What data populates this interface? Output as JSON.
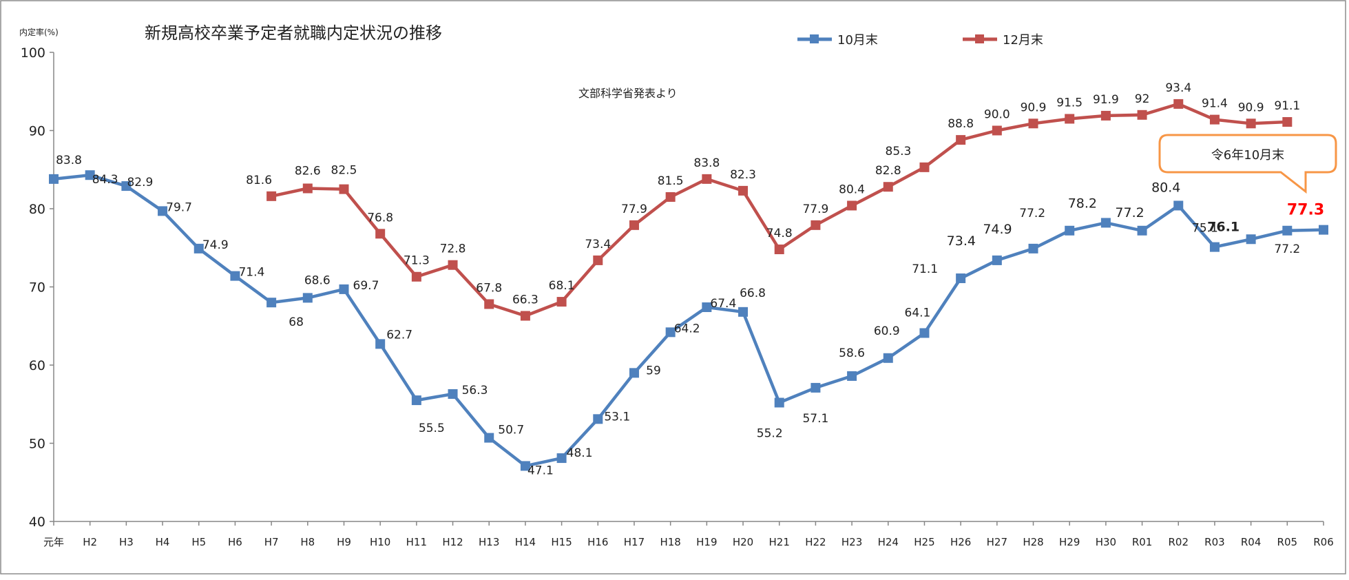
{
  "chart_data": {
    "type": "line",
    "title": "新規高校卒業予定者就職内定状況の推移",
    "ylabel": "内定率(%)",
    "xlabel": "",
    "source_note": "文部科学省発表より",
    "callout": "令6年10月末",
    "ylim": [
      40,
      100
    ],
    "yticks": [
      40,
      50,
      60,
      70,
      80,
      90,
      100
    ],
    "grid": false,
    "legend_position": "top-center",
    "categories": [
      "元年",
      "H2",
      "H3",
      "H4",
      "H5",
      "H6",
      "H7",
      "H8",
      "H9",
      "H10",
      "H11",
      "H12",
      "H13",
      "H14",
      "H15",
      "H16",
      "H17",
      "H18",
      "H19",
      "H20",
      "H21",
      "H22",
      "H23",
      "H24",
      "H25",
      "H26",
      "H27",
      "H28",
      "H29",
      "H30",
      "R01",
      "R02",
      "R03",
      "R04",
      "R05",
      "R06"
    ],
    "series": [
      {
        "name": "10月末",
        "color": "#4f81bd",
        "values": [
          83.8,
          84.3,
          82.9,
          79.7,
          74.9,
          71.4,
          68,
          68.6,
          69.7,
          62.7,
          55.5,
          56.3,
          50.7,
          47.1,
          48.1,
          53.1,
          59,
          64.2,
          67.4,
          66.8,
          55.2,
          57.1,
          58.6,
          60.9,
          64.1,
          71.1,
          73.4,
          74.9,
          77.2,
          78.2,
          77.2,
          80.4,
          75.1,
          76.1,
          77.2,
          77.3
        ],
        "labels": [
          "83.8",
          "84.3",
          "82.9",
          "79.7",
          "74.9",
          "71.4",
          "68",
          "68.6",
          "69.7",
          "62.7",
          "55.5",
          "56.3",
          "50.7",
          "47.1",
          "48.1",
          "53.1",
          "59",
          "64.2",
          "67.4",
          "66.8",
          "55.2",
          "57.1",
          "58.6",
          "60.9",
          "64.1",
          "71.1",
          "73.4",
          "74.9",
          "77.2",
          "78.2",
          "77.2",
          "80.4",
          "75.1",
          "76.1",
          "77.2",
          "77.3"
        ]
      },
      {
        "name": "12月末",
        "color": "#c0504d",
        "values": [
          null,
          null,
          null,
          null,
          null,
          null,
          81.6,
          82.6,
          82.5,
          76.8,
          71.3,
          72.8,
          67.8,
          66.3,
          68.1,
          73.4,
          77.9,
          81.5,
          83.8,
          82.3,
          74.8,
          77.9,
          80.4,
          82.8,
          85.3,
          88.8,
          90.0,
          90.9,
          91.5,
          91.9,
          92,
          93.4,
          91.4,
          90.9,
          91.1,
          null
        ],
        "labels": [
          "",
          "",
          "",
          "",
          "",
          "",
          "81.6",
          "82.6",
          "82.5",
          "76.8",
          "71.3",
          "72.8",
          "67.8",
          "66.3",
          "68.1",
          "73.4",
          "77.9",
          "81.5",
          "83.8",
          "82.3",
          "74.8",
          "77.9",
          "80.4",
          "82.8",
          "85.3",
          "88.8",
          "90.0",
          "90.9",
          "91.5",
          "91.9",
          "92",
          "93.4",
          "91.4",
          "90.9",
          "91.1",
          ""
        ]
      }
    ]
  }
}
